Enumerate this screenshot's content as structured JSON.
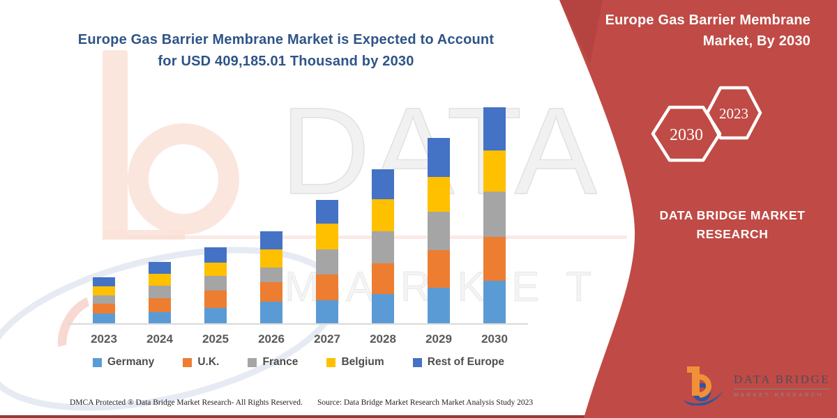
{
  "page": {
    "title_line1": "Europe Gas Barrier Membrane Market is Expected to Account",
    "title_line2": "for USD 409,185.01 Thousand by 2030"
  },
  "chart_data": {
    "type": "bar",
    "stacked": true,
    "title": "Europe Gas Barrier Membrane Market is Expected to Account for USD 409,185.01 Thousand by 2030",
    "unit": "USD Thousand",
    "xlabel": "",
    "ylabel": "",
    "y_axis_visible": false,
    "grid": false,
    "legend_position": "bottom",
    "ylim": [
      0,
      420000
    ],
    "categories": [
      "2023",
      "2024",
      "2025",
      "2026",
      "2027",
      "2028",
      "2029",
      "2030"
    ],
    "series": [
      {
        "name": "Germany",
        "color": "#5B9BD5",
        "values": [
          19700,
          22400,
          30300,
          42100,
          44700,
          56600,
          68400,
          81600
        ]
      },
      {
        "name": "U.K.",
        "color": "#ED7D31",
        "values": [
          18400,
          26300,
          32900,
          36800,
          48700,
          57900,
          71000,
          82900
        ]
      },
      {
        "name": "France",
        "color": "#A5A5A5",
        "values": [
          15800,
          23700,
          27600,
          27600,
          47400,
          60500,
          72400,
          85500
        ]
      },
      {
        "name": "Belgium",
        "color": "#FFC000",
        "values": [
          17100,
          22400,
          25000,
          34200,
          48700,
          60500,
          65800,
          77600
        ]
      },
      {
        "name": "Rest of Europe",
        "color": "#4472C4",
        "values": [
          17100,
          22400,
          28900,
          34200,
          44700,
          56600,
          73700,
          81585.01
        ]
      }
    ],
    "totals_by_year": [
      88100,
      117200,
      144700,
      174900,
      234200,
      292100,
      351300,
      409185.01
    ],
    "values_note": "No value axis is shown in the figure; series values are estimated from bar segment heights, scaled so the 2030 total equals USD 409,185.01 Thousand as stated in the title."
  },
  "footer": {
    "left": "DMCA Protected ® Data Bridge Market Research-  All Rights Reserved.",
    "right": "Source: Data Bridge Market Research  Market Analysis Study 2023"
  },
  "side_panel": {
    "panel_color": "#C04A45",
    "title_line1": "Europe Gas Barrier Membrane",
    "title_line2": "Market, By 2030",
    "hexagons": [
      {
        "label": "2030"
      },
      {
        "label": "2023"
      }
    ],
    "brand_line1": "DATA BRIDGE MARKET",
    "brand_line2": "RESEARCH"
  },
  "logo": {
    "name": "DATA BRIDGE",
    "subtitle": "MARKET RESEARCH",
    "orange": "#F0913A",
    "blue": "#2E569E"
  },
  "watermark": {
    "row1": "DATA BRIDGE",
    "row2": "MARKET RESEARCH"
  }
}
